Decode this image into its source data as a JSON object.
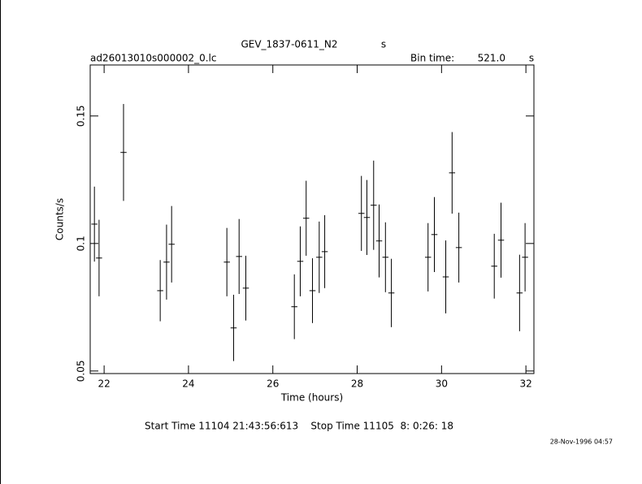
{
  "chart_data": {
    "type": "errorbar",
    "title": "GEV_1837-0611_N2",
    "title_unit": "s",
    "subtitle": "ad26013010s000002_0.lc",
    "bin_time_label": "Bin time:",
    "bin_time": "521.0",
    "bin_time_unit": "s",
    "xlabel": "Time (hours)",
    "ylabel": "Counts/s",
    "footer": "Start Time 11104 21:43:56:613    Stop Time 11105  8: 0:26: 18",
    "timestamp": "28-Nov-1996 04:57",
    "x": [
      21.77,
      21.88,
      22.46,
      23.33,
      23.48,
      23.6,
      24.91,
      25.07,
      25.2,
      25.36,
      26.51,
      26.65,
      26.79,
      26.94,
      27.1,
      27.23,
      28.1,
      28.23,
      28.39,
      28.52,
      28.67,
      28.81,
      29.68,
      29.83,
      30.1,
      30.25,
      30.41,
      31.25,
      31.41,
      31.85,
      31.98
    ],
    "values": [
      0.1076,
      0.0943,
      0.1357,
      0.0815,
      0.0927,
      0.0997,
      0.0927,
      0.0669,
      0.0949,
      0.0825,
      0.0752,
      0.093,
      0.1099,
      0.0815,
      0.0946,
      0.0968,
      0.1118,
      0.1102,
      0.115,
      0.101,
      0.0946,
      0.0806,
      0.0946,
      0.1035,
      0.0869,
      0.1277,
      0.0984,
      0.0911,
      0.1013,
      0.0806,
      0.0946
    ],
    "errors": [
      0.0147,
      0.015,
      0.019,
      0.012,
      0.0147,
      0.015,
      0.0134,
      0.013,
      0.0147,
      0.0127,
      0.0127,
      0.0137,
      0.0147,
      0.0127,
      0.014,
      0.0143,
      0.0147,
      0.0147,
      0.0175,
      0.0143,
      0.0137,
      0.0134,
      0.0134,
      0.0147,
      0.0143,
      0.016,
      0.0137,
      0.0127,
      0.0147,
      0.015,
      0.0134
    ],
    "xerr": 0.072,
    "color": "#000000",
    "xlim": [
      21.67,
      32.19
    ],
    "xticks": [
      22,
      24,
      26,
      28,
      30,
      32
    ],
    "ylim": [
      0.049,
      0.17
    ],
    "yticks": [
      0.05,
      0.1,
      0.15
    ]
  }
}
